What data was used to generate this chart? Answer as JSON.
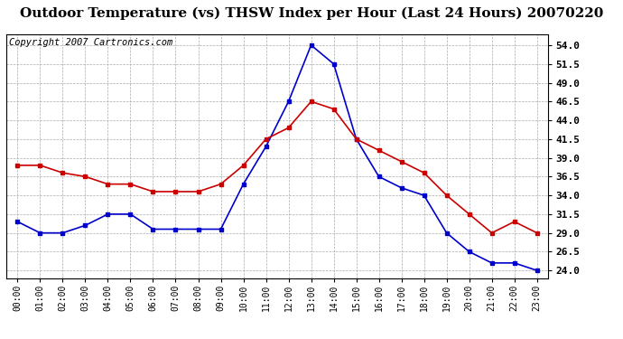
{
  "title": "Outdoor Temperature (vs) THSW Index per Hour (Last 24 Hours) 20070220",
  "copyright": "Copyright 2007 Cartronics.com",
  "hours": [
    "00:00",
    "01:00",
    "02:00",
    "03:00",
    "04:00",
    "05:00",
    "06:00",
    "07:00",
    "08:00",
    "09:00",
    "10:00",
    "11:00",
    "12:00",
    "13:00",
    "14:00",
    "15:00",
    "16:00",
    "17:00",
    "18:00",
    "19:00",
    "20:00",
    "21:00",
    "22:00",
    "23:00"
  ],
  "red_data": [
    38.0,
    38.0,
    37.0,
    36.5,
    35.5,
    35.5,
    34.5,
    34.5,
    34.5,
    35.5,
    38.0,
    41.5,
    43.0,
    46.5,
    45.5,
    41.5,
    40.0,
    38.5,
    37.0,
    34.0,
    31.5,
    29.0,
    30.5,
    29.0
  ],
  "blue_data": [
    30.5,
    29.0,
    29.0,
    30.0,
    31.5,
    31.5,
    29.5,
    29.5,
    29.5,
    29.5,
    35.5,
    40.5,
    46.5,
    54.0,
    51.5,
    41.5,
    36.5,
    35.0,
    34.0,
    29.0,
    26.5,
    25.0,
    25.0,
    24.0
  ],
  "ylim": [
    23.0,
    55.5
  ],
  "yticks": [
    24.0,
    26.5,
    29.0,
    31.5,
    34.0,
    36.5,
    39.0,
    41.5,
    44.0,
    46.5,
    49.0,
    51.5,
    54.0
  ],
  "red_color": "#cc0000",
  "blue_color": "#0000cc",
  "bg_color": "#ffffff",
  "grid_color": "#aaaaaa",
  "title_fontsize": 11,
  "copyright_fontsize": 7.5
}
